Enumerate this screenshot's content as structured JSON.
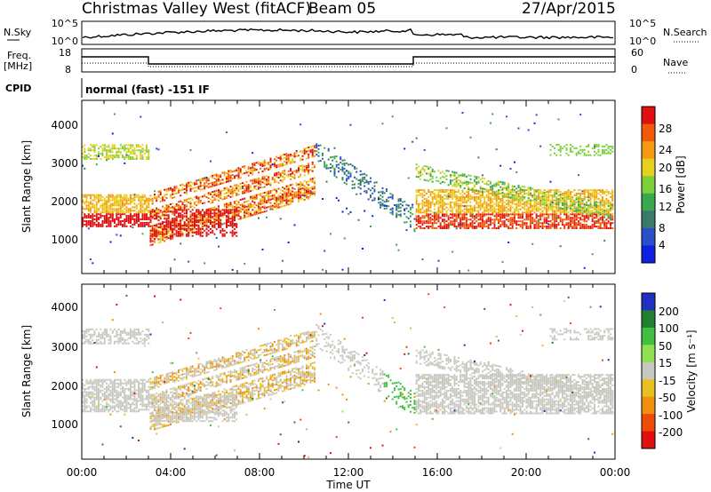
{
  "header": {
    "station": "Christmas Valley West (fitACF)",
    "beam": "Beam 05",
    "date": "27/Apr/2015"
  },
  "nsky_panel": {
    "left_label": "N.Sky",
    "right_label": "N.Search",
    "ticks_left": [
      "10^5",
      "10^0"
    ],
    "ticks_right": [
      "10^5",
      "10^0"
    ]
  },
  "freq_panel": {
    "left_label_1": "Freq.",
    "left_label_2": "[MHz]",
    "right_label": "Nave",
    "ticks_left": [
      "18",
      "8"
    ],
    "ticks_right": [
      "60",
      "0"
    ]
  },
  "cpid": {
    "label": "CPID",
    "mode": "normal (fast) -151 IF"
  },
  "colors": {
    "power": [
      "#1020e0",
      "#2a4fc8",
      "#3a7a6a",
      "#3aa84c",
      "#7cd03a",
      "#e8d020",
      "#f59a10",
      "#f05a0a",
      "#e01010"
    ],
    "velocity": [
      "#2030c0",
      "#208030",
      "#40c040",
      "#90e050",
      "#c8c8c0",
      "#e8c020",
      "#f09010",
      "#f04a08",
      "#e01010"
    ]
  },
  "chart_data": [
    {
      "type": "heatmap",
      "panel": "power",
      "ylabel": "Slant Range [km]",
      "xlim": [
        "00:00",
        "24:00"
      ],
      "ylim": [
        0,
        4500
      ],
      "yticks": [
        "1000",
        "2000",
        "3000",
        "4000"
      ],
      "colorbar": {
        "label": "Power [dB]",
        "ticks": [
          "4",
          "8",
          "12",
          "16",
          "20",
          "24",
          "28"
        ]
      }
    },
    {
      "type": "heatmap",
      "panel": "velocity",
      "ylabel": "Slant Range [km]",
      "xlabel": "Time UT",
      "xlim": [
        "00:00",
        "24:00"
      ],
      "ylim": [
        0,
        4500
      ],
      "xticks": [
        "00:00",
        "04:00",
        "08:00",
        "12:00",
        "16:00",
        "20:00",
        "00:00"
      ],
      "yticks": [
        "1000",
        "2000",
        "3000",
        "4000"
      ],
      "colorbar": {
        "label": "Velocity [m s⁻¹]",
        "ticks": [
          "200",
          "100",
          "50",
          "15",
          "-15",
          "-50",
          "-100",
          "-200"
        ]
      }
    }
  ]
}
